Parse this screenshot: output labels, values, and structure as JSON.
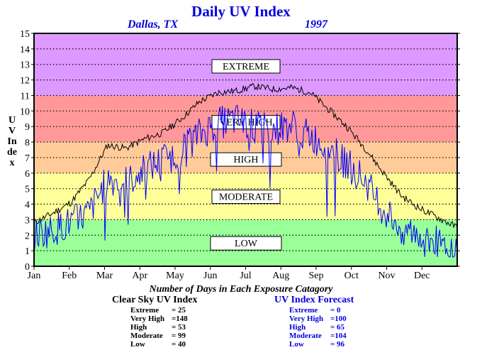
{
  "header": {
    "title": "Daily UV Index",
    "location": "Dallas, TX",
    "year": "1997"
  },
  "y_axis_label": "UV Index",
  "footer": {
    "title": "Number of Days in Each Exposure Catagory",
    "clear_sky": {
      "heading": "Clear Sky UV Index",
      "rows": [
        {
          "label": "Extreme",
          "value": "= 25"
        },
        {
          "label": "Very High",
          "value": "=148"
        },
        {
          "label": "High",
          "value": "= 53"
        },
        {
          "label": "Moderate",
          "value": "= 99"
        },
        {
          "label": "Low",
          "value": "= 40"
        }
      ]
    },
    "forecast": {
      "heading": "UV Index Forecast",
      "rows": [
        {
          "label": "Extreme",
          "value": "= 0"
        },
        {
          "label": "Very High",
          "value": "=100"
        },
        {
          "label": "High",
          "value": "= 65"
        },
        {
          "label": "Moderate",
          "value": "=104"
        },
        {
          "label": "Low",
          "value": "= 96"
        }
      ]
    }
  },
  "chart_data": {
    "type": "line",
    "title": "Daily UV Index",
    "ylabel": "UV Index",
    "ylim": [
      0,
      15
    ],
    "yticks": [
      "0",
      "1",
      "2",
      "3",
      "4",
      "5",
      "6",
      "7",
      "8",
      "9",
      "10",
      "11",
      "12",
      "13",
      "14",
      "15"
    ],
    "xticks": [
      "Jan",
      "Feb",
      "Mar",
      "Apr",
      "May",
      "Jun",
      "Jul",
      "Aug",
      "Sep",
      "Oct",
      "Nov",
      "Dec"
    ],
    "grid": true,
    "bands": [
      {
        "label": "LOW",
        "from": 0,
        "to": 3,
        "color": "#99ff99"
      },
      {
        "label": "MODERATE",
        "from": 3,
        "to": 6,
        "color": "#ffff99"
      },
      {
        "label": "HIGH",
        "from": 6,
        "to": 8,
        "color": "#ffcc99"
      },
      {
        "label": "VERY HIGH",
        "from": 8,
        "to": 11,
        "color": "#ff9999"
      },
      {
        "label": "EXTREME",
        "from": 11,
        "to": 15,
        "color": "#dd99ff"
      }
    ],
    "series": [
      {
        "color": "#000000",
        "values": [
          2.8,
          3.4,
          4.1,
          5.6,
          7.8,
          7.6,
          8.2,
          8.6,
          9.5,
          10.6,
          11.2,
          11.3,
          11.6,
          11.4,
          11.5,
          11.2,
          10.1,
          9.0,
          7.6,
          6.0,
          4.5,
          3.7,
          3.1,
          2.5
        ]
      },
      {
        "color": "#0000ff",
        "values": [
          2.0,
          2.3,
          2.8,
          3.4,
          5.6,
          5.3,
          6.2,
          6.8,
          7.4,
          8.5,
          9.2,
          9.4,
          9.0,
          8.8,
          9.1,
          8.4,
          7.6,
          6.6,
          5.5,
          3.6,
          2.5,
          2.0,
          1.5,
          1.5
        ]
      }
    ]
  }
}
